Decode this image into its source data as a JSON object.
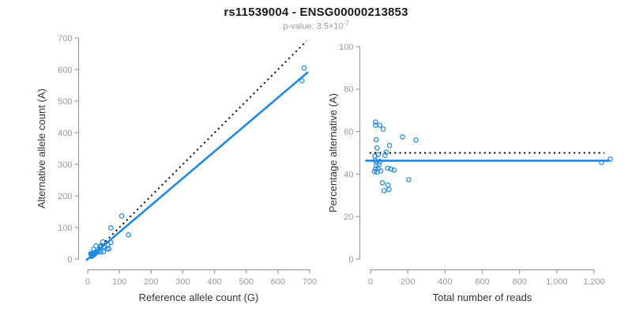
{
  "header": {
    "title": "rs11539004 - ENSG00000213853",
    "subtitle_prefix": "p-value: ",
    "subtitle_mantissa": "3.5×10",
    "subtitle_exponent": "-7"
  },
  "colors": {
    "accent": "#1E88E5",
    "dotted_line": "#000000",
    "axis": "#9b9b9b",
    "tick_label": "#999999",
    "axis_title": "#333333",
    "title": "#1a1a1a",
    "subtitle": "#999999",
    "background": "#ffffff"
  },
  "chart_data": [
    {
      "type": "scatter",
      "name": "allele-counts-scatter",
      "xlabel": "Reference allele count (G)",
      "ylabel": "Alternative allele count (A)",
      "xlim": [
        0,
        700
      ],
      "ylim": [
        0,
        700
      ],
      "xticks": [
        0,
        100,
        200,
        300,
        400,
        500,
        600,
        700
      ],
      "xtick_labels": [
        "0",
        "100",
        "200",
        "300",
        "400",
        "500",
        "600",
        "700"
      ],
      "yticks": [
        0,
        100,
        200,
        300,
        400,
        500,
        600,
        700
      ],
      "ytick_labels": [
        "0",
        "100",
        "200",
        "300",
        "400",
        "500",
        "600",
        "700"
      ],
      "grid": false,
      "points": [
        [
          9.6,
          17.4
        ],
        [
          10.0,
          17.0
        ],
        [
          18.5,
          31.5
        ],
        [
          26.4,
          41.6
        ],
        [
          13.6,
          17.4
        ],
        [
          73.1,
          98.9
        ],
        [
          107.4,
          136.6
        ],
        [
          47.5,
          54.5
        ],
        [
          16.7,
          18.3
        ],
        [
          41.7,
          42.3
        ],
        [
          12.4,
          11.6
        ],
        [
          20.8,
          20.2
        ],
        [
          39.4,
          37.6
        ],
        [
          13.4,
          11.6
        ],
        [
          27.5,
          23.5
        ],
        [
          17.4,
          13.6
        ],
        [
          25.0,
          20.0
        ],
        [
          15.6,
          11.4
        ],
        [
          24.1,
          17.9
        ],
        [
          12.3,
          8.7
        ],
        [
          20.7,
          14.3
        ],
        [
          32.2,
          22.8
        ],
        [
          52.6,
          39.4
        ],
        [
          62.8,
          46.2
        ],
        [
          73.2,
          52.8
        ],
        [
          41.0,
          23.0
        ],
        [
          61.2,
          32.8
        ],
        [
          49.5,
          23.5
        ],
        [
          66.5,
          32.5
        ],
        [
          128.3,
          76.7
        ],
        [
          675.8,
          564.2
        ],
        [
          682.2,
          604.9
        ]
      ],
      "lines": [
        {
          "name": "identity-line",
          "style": "dotted",
          "color": "#000000",
          "x": [
            0,
            690
          ],
          "y": [
            0,
            690
          ]
        },
        {
          "name": "fit-line",
          "style": "solid",
          "color": "#1E88E5",
          "x": [
            -5,
            695
          ],
          "y": [
            -4,
            592
          ]
        }
      ]
    },
    {
      "type": "scatter",
      "name": "percentage-vs-coverage-scatter",
      "xlabel": "Total number of reads",
      "ylabel": "Percentage alternative (A)",
      "xlim": [
        0,
        1200
      ],
      "ylim": [
        0,
        100
      ],
      "xticks": [
        0,
        200,
        400,
        600,
        800,
        1000,
        1200
      ],
      "xtick_labels": [
        "0",
        "200",
        "400",
        "600",
        "800",
        "1,000",
        "1,200"
      ],
      "yticks": [
        0,
        20,
        40,
        60,
        80,
        100
      ],
      "ytick_labels": [
        "0",
        "20",
        "40",
        "60",
        "80",
        "100"
      ],
      "grid": false,
      "points": [
        [
          27,
          64.5
        ],
        [
          27,
          63.0
        ],
        [
          50,
          63.0
        ],
        [
          68,
          61.2
        ],
        [
          31,
          56.2
        ],
        [
          172,
          57.5
        ],
        [
          244,
          56.0
        ],
        [
          102,
          53.4
        ],
        [
          35,
          52.3
        ],
        [
          84,
          50.3
        ],
        [
          24,
          48.5
        ],
        [
          41,
          49.2
        ],
        [
          77,
          48.8
        ],
        [
          25,
          46.4
        ],
        [
          51,
          46.0
        ],
        [
          31,
          44.0
        ],
        [
          45,
          44.4
        ],
        [
          27,
          42.4
        ],
        [
          42,
          42.6
        ],
        [
          21,
          41.2
        ],
        [
          35,
          40.9
        ],
        [
          55,
          41.5
        ],
        [
          92,
          42.8
        ],
        [
          109,
          42.4
        ],
        [
          126,
          41.9
        ],
        [
          64,
          35.9
        ],
        [
          94,
          34.9
        ],
        [
          73,
          32.2
        ],
        [
          99,
          32.8
        ],
        [
          205,
          37.4
        ],
        [
          1240,
          45.5
        ],
        [
          1287,
          47.0
        ]
      ],
      "lines": [
        {
          "name": "expected-50pct-line",
          "style": "dotted",
          "color": "#000000",
          "x": [
            -5,
            1255
          ],
          "y": [
            50,
            50
          ]
        },
        {
          "name": "fit-line",
          "style": "solid",
          "color": "#1E88E5",
          "x": [
            -28,
            1285
          ],
          "y": [
            46.3,
            46.3
          ]
        }
      ]
    }
  ]
}
